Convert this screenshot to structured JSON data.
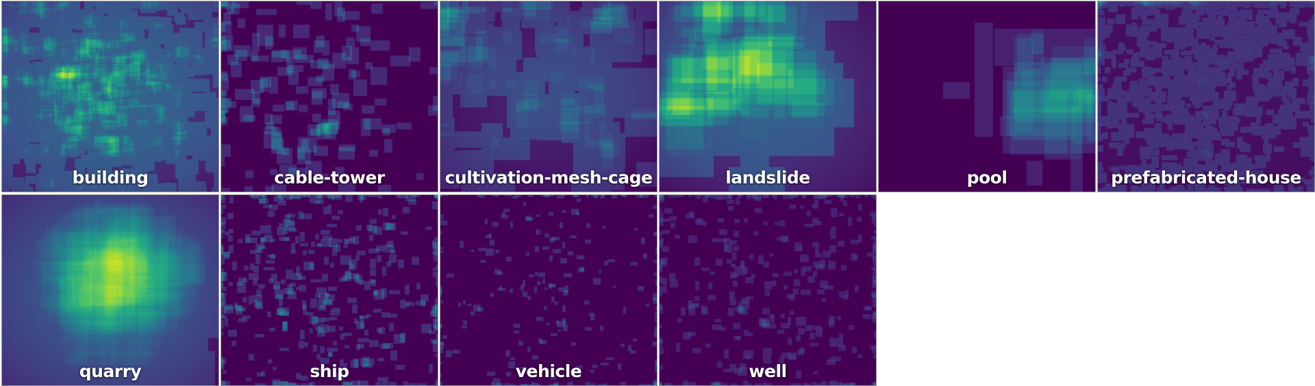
{
  "chart_data": {
    "type": "heatmap",
    "colormap": "viridis",
    "colors": {
      "low": "#440154",
      "mid_low": "#3b528b",
      "mid": "#21918c",
      "mid_high": "#5ec962",
      "high": "#fde725"
    },
    "panels": [
      {
        "label": "building",
        "pattern": "dense-center",
        "peak": [
          0.44,
          0.45
        ],
        "spread": 0.3,
        "boxes": 700,
        "box_size": [
          0.04,
          0.13
        ],
        "background": 0.2,
        "intensity": 0.95
      },
      {
        "label": "cable-tower",
        "pattern": "scattered-boxes",
        "peak": [
          0.35,
          0.45
        ],
        "spread": 0.3,
        "boxes": 160,
        "box_size": [
          0.03,
          0.09
        ],
        "background": 0.0,
        "intensity": 0.6
      },
      {
        "label": "cultivation-mesh-cage",
        "pattern": "overlapping-boxes",
        "peak": [
          0.4,
          0.35
        ],
        "spread": 0.35,
        "boxes": 90,
        "box_size": [
          0.08,
          0.3
        ],
        "background": 0.12,
        "intensity": 0.7
      },
      {
        "label": "landslide",
        "pattern": "large-boxes",
        "peak": [
          0.35,
          0.25
        ],
        "spread": 0.3,
        "boxes": 45,
        "box_size": [
          0.12,
          0.6
        ],
        "background": 0.18,
        "intensity": 0.9
      },
      {
        "label": "pool",
        "pattern": "sparse-large",
        "peak": [
          0.73,
          0.5
        ],
        "spread": 0.22,
        "boxes": 25,
        "box_size": [
          0.05,
          0.6
        ],
        "background": 0.0,
        "intensity": 0.6
      },
      {
        "label": "prefabricated-house",
        "pattern": "dense-texture",
        "peak": [
          0.48,
          0.4
        ],
        "spread": 0.35,
        "boxes": 900,
        "box_size": [
          0.02,
          0.07
        ],
        "background": 0.05,
        "intensity": 0.5
      },
      {
        "label": "quarry",
        "pattern": "dense-center",
        "peak": [
          0.55,
          0.48
        ],
        "spread": 0.22,
        "boxes": 220,
        "box_size": [
          0.1,
          0.6
        ],
        "background": 0.15,
        "intensity": 0.95
      },
      {
        "label": "ship",
        "pattern": "scattered-small",
        "peak": [
          0.45,
          0.45
        ],
        "spread": 0.35,
        "boxes": 420,
        "box_size": [
          0.015,
          0.05
        ],
        "background": 0.0,
        "intensity": 0.55
      },
      {
        "label": "vehicle",
        "pattern": "sparse-small",
        "peak": [
          0.5,
          0.5
        ],
        "spread": 0.4,
        "boxes": 240,
        "box_size": [
          0.01,
          0.035
        ],
        "background": 0.0,
        "intensity": 0.45
      },
      {
        "label": "well",
        "pattern": "scattered-small",
        "peak": [
          0.5,
          0.5
        ],
        "spread": 0.4,
        "boxes": 380,
        "box_size": [
          0.015,
          0.045
        ],
        "background": 0.0,
        "intensity": 0.4
      }
    ]
  }
}
